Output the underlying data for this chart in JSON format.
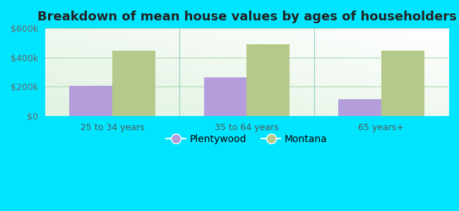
{
  "title": "Breakdown of mean house values by ages of householders",
  "categories": [
    "25 to 34 years",
    "35 to 64 years",
    "65 years+"
  ],
  "plentywood_values": [
    205000,
    265000,
    115000
  ],
  "montana_values": [
    445000,
    490000,
    445000
  ],
  "plentywood_color": "#b39ddb",
  "montana_color": "#b5c98a",
  "background_outer": "#00e5ff",
  "ylim": [
    0,
    600000
  ],
  "yticks": [
    0,
    200000,
    400000,
    600000
  ],
  "ytick_labels": [
    "$0",
    "$200k",
    "$400k",
    "$600k"
  ],
  "legend_labels": [
    "Plentywood",
    "Montana"
  ],
  "bar_width": 0.32,
  "title_fontsize": 13,
  "title_fontweight": "bold",
  "separator_color": "#90d0c0",
  "grid_color": "#c8e8c8"
}
